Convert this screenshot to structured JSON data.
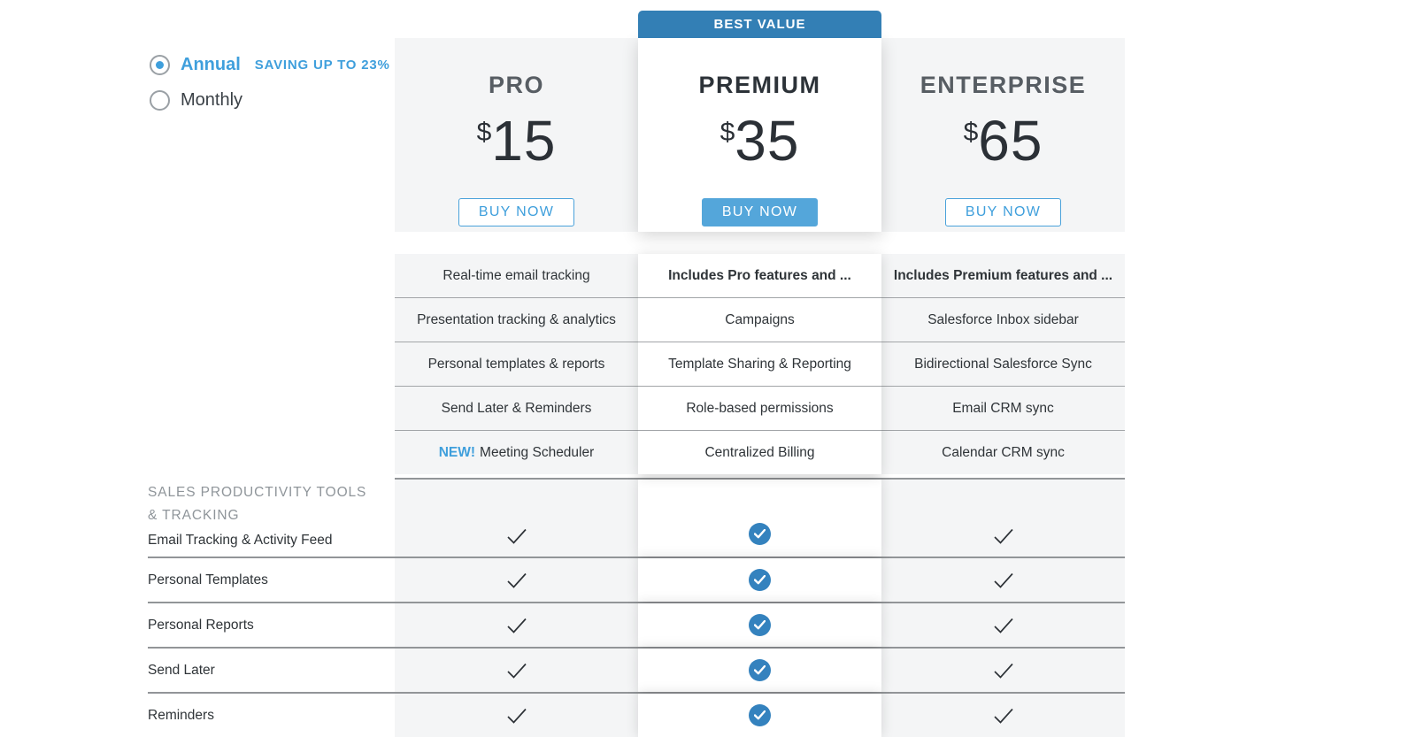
{
  "billing_toggle": {
    "options": [
      {
        "label": "Annual",
        "selected": true,
        "badge": "SAVING UP TO 23%"
      },
      {
        "label": "Monthly",
        "selected": false,
        "badge": ""
      }
    ]
  },
  "best_value_badge": "BEST VALUE",
  "plans": [
    {
      "id": "pro",
      "name": "PRO",
      "currency": "$",
      "price": "15",
      "cta": "BUY NOW",
      "highlighted": false,
      "features": [
        {
          "text": "Real-time email tracking",
          "bold": false,
          "prefix": ""
        },
        {
          "text": "Presentation tracking & analytics",
          "bold": false,
          "prefix": ""
        },
        {
          "text": "Personal templates & reports",
          "bold": false,
          "prefix": ""
        },
        {
          "text": "Send Later & Reminders",
          "bold": false,
          "prefix": ""
        },
        {
          "text": "Meeting Scheduler",
          "bold": false,
          "prefix": "NEW!"
        }
      ]
    },
    {
      "id": "premium",
      "name": "PREMIUM",
      "currency": "$",
      "price": "35",
      "cta": "BUY NOW",
      "highlighted": true,
      "features": [
        {
          "text": "Includes Pro features and ...",
          "bold": true,
          "prefix": ""
        },
        {
          "text": "Campaigns",
          "bold": false,
          "prefix": ""
        },
        {
          "text": "Template Sharing & Reporting",
          "bold": false,
          "prefix": ""
        },
        {
          "text": "Role-based permissions",
          "bold": false,
          "prefix": ""
        },
        {
          "text": "Centralized Billing",
          "bold": false,
          "prefix": ""
        }
      ]
    },
    {
      "id": "enterprise",
      "name": "ENTERPRISE",
      "currency": "$",
      "price": "65",
      "cta": "BUY NOW",
      "highlighted": false,
      "features": [
        {
          "text": "Includes Premium features and ...",
          "bold": true,
          "prefix": ""
        },
        {
          "text": "Salesforce Inbox sidebar",
          "bold": false,
          "prefix": ""
        },
        {
          "text": "Bidirectional Salesforce Sync",
          "bold": false,
          "prefix": ""
        },
        {
          "text": "Email CRM sync",
          "bold": false,
          "prefix": ""
        },
        {
          "text": "Calendar CRM sync",
          "bold": false,
          "prefix": ""
        }
      ]
    }
  ],
  "comparison_table": {
    "section_heading": "SALES PRODUCTIVITY TOOLS & TRACKING",
    "rows": [
      {
        "label": "Email Tracking & Activity Feed",
        "pro": true,
        "premium": true,
        "enterprise": true
      },
      {
        "label": "Personal Templates",
        "pro": true,
        "premium": true,
        "enterprise": true
      },
      {
        "label": "Personal Reports",
        "pro": true,
        "premium": true,
        "enterprise": true
      },
      {
        "label": "Send Later",
        "pro": true,
        "premium": true,
        "enterprise": true
      },
      {
        "label": "Reminders",
        "pro": true,
        "premium": true,
        "enterprise": true
      }
    ]
  },
  "colors": {
    "accent_blue": "#3F9FDC",
    "badge_blue": "#337FB5",
    "filled_button_blue": "#54A6DA",
    "check_circle_blue": "#3482BE",
    "column_gray": "#F4F5F6",
    "dark_text": "#2F3438",
    "muted_gray": "#8F959A"
  }
}
